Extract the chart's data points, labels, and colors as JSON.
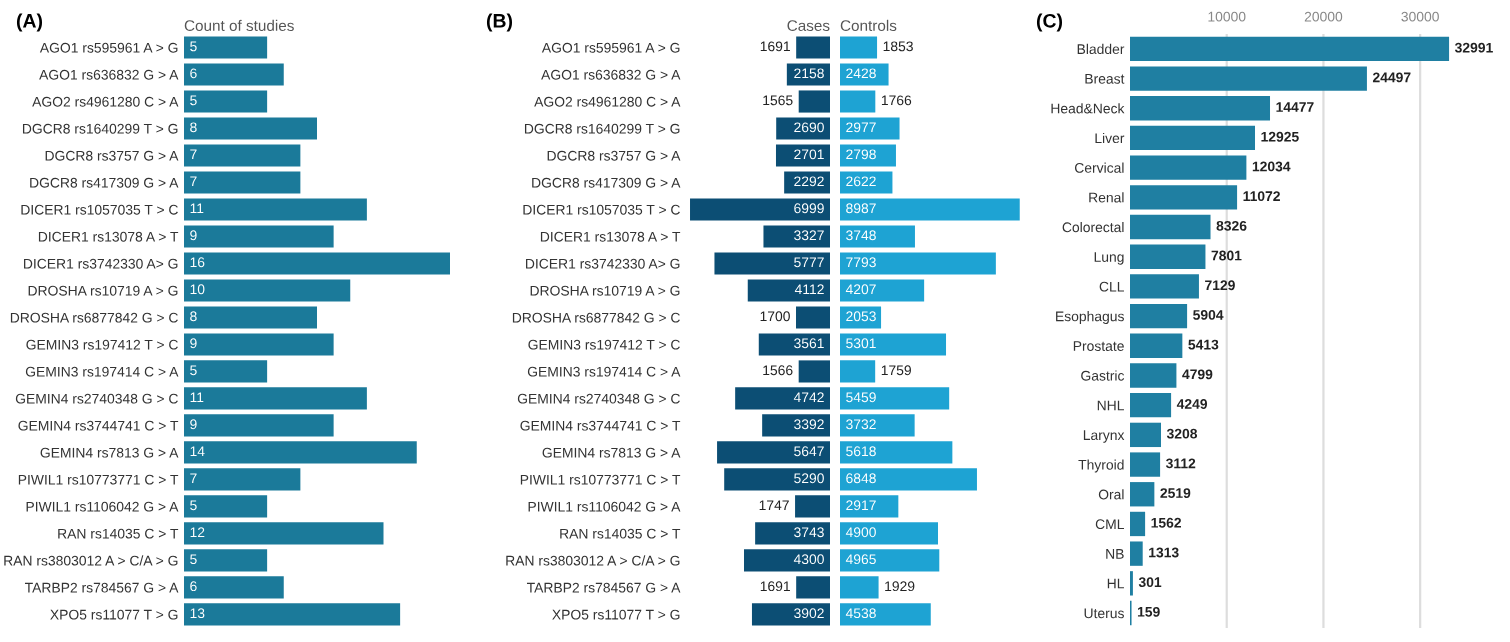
{
  "chart_data": [
    {
      "type": "bar",
      "orientation": "horizontal",
      "title": "(A)",
      "xlabel": "Count of studies",
      "tick_labels": "y",
      "data_labels": true,
      "color": "#1b7a9a",
      "categories": [
        "AGO1 rs595961 A > G",
        "AGO1 rs636832 G > A",
        "AGO2 rs4961280 C > A",
        "DGCR8 rs1640299 T > G",
        "DGCR8 rs3757 G > A",
        "DGCR8 rs417309 G > A",
        "DICER1 rs1057035 T > C",
        "DICER1 rs13078 A > T",
        "DICER1 rs3742330 A> G",
        "DROSHA rs10719 A > G",
        "DROSHA rs6877842 G > C",
        "GEMIN3 rs197412 T > C",
        "GEMIN3 rs197414 C > A",
        "GEMIN4 rs2740348 G > C",
        "GEMIN4 rs3744741 C > T",
        "GEMIN4 rs7813 G > A",
        "PIWIL1 rs10773771 C > T",
        "PIWIL1 rs1106042 G > A",
        "RAN rs14035 C > T",
        "RAN rs3803012 A > C/A > G",
        "TARBP2 rs784567 G > A",
        "XPO5 rs11077 T > G"
      ],
      "values": [
        5,
        6,
        5,
        8,
        7,
        7,
        11,
        9,
        16,
        10,
        8,
        9,
        5,
        11,
        9,
        14,
        7,
        5,
        12,
        5,
        6,
        13
      ]
    },
    {
      "type": "bar",
      "orientation": "horizontal",
      "title": "(B)",
      "xlabel": "Cases",
      "tick_labels": "y",
      "data_labels": true,
      "color": "#0c4e74",
      "xlim": [
        7200,
        0
      ],
      "categories": [
        "AGO1 rs595961 A > G",
        "AGO1 rs636832 G > A",
        "AGO2 rs4961280 C > A",
        "DGCR8 rs1640299 T > G",
        "DGCR8 rs3757 G > A",
        "DGCR8 rs417309 G > A",
        "DICER1 rs1057035 T > C",
        "DICER1 rs13078 A > T",
        "DICER1 rs3742330 A> G",
        "DROSHA rs10719 A > G",
        "DROSHA rs6877842 G > C",
        "GEMIN3 rs197412 T > C",
        "GEMIN3 rs197414 C > A",
        "GEMIN4 rs2740348 G > C",
        "GEMIN4 rs3744741 C > T",
        "GEMIN4 rs7813 G > A",
        "PIWIL1 rs10773771 C > T",
        "PIWIL1 rs1106042 G > A",
        "RAN rs14035 C > T",
        "RAN rs3803012 A > C/A > G",
        "TARBP2 rs784567 G > A",
        "XPO5 rs11077 T > G"
      ],
      "values": [
        1691,
        2158,
        1565,
        2690,
        2701,
        2292,
        6999,
        3327,
        5777,
        4112,
        1700,
        3561,
        1566,
        4742,
        3392,
        5647,
        5290,
        1747,
        3743,
        4300,
        1691,
        3902
      ]
    },
    {
      "type": "bar",
      "orientation": "horizontal",
      "xlabel": "Controls",
      "tick_labels": false,
      "data_labels": true,
      "color": "#1ea3d3",
      "xlim": [
        0,
        9000
      ],
      "values": [
        1853,
        2428,
        1766,
        2977,
        2798,
        2622,
        8987,
        3748,
        7793,
        4207,
        2053,
        5301,
        1759,
        5459,
        3732,
        5618,
        6848,
        2917,
        4900,
        4965,
        1929,
        4538
      ]
    },
    {
      "type": "bar",
      "orientation": "horizontal",
      "title": "(C)",
      "data_labels": true,
      "color": "#1f7fa2",
      "grid": "x",
      "xlim": [
        0,
        33500
      ],
      "xticks": [
        10000,
        20000,
        30000
      ],
      "categories": [
        "Bladder",
        "Breast",
        "Head&Neck",
        "Liver",
        "Cervical",
        "Renal",
        "Colorectal",
        "Lung",
        "CLL",
        "Esophagus",
        "Prostate",
        "Gastric",
        "NHL",
        "Larynx",
        "Thyroid",
        "Oral",
        "CML",
        "NB",
        "HL",
        "Uterus"
      ],
      "values": [
        32991,
        24497,
        14477,
        12925,
        12034,
        11072,
        8326,
        7801,
        7129,
        5904,
        5413,
        4799,
        4249,
        3208,
        3112,
        2519,
        1562,
        1313,
        301,
        159
      ]
    }
  ]
}
